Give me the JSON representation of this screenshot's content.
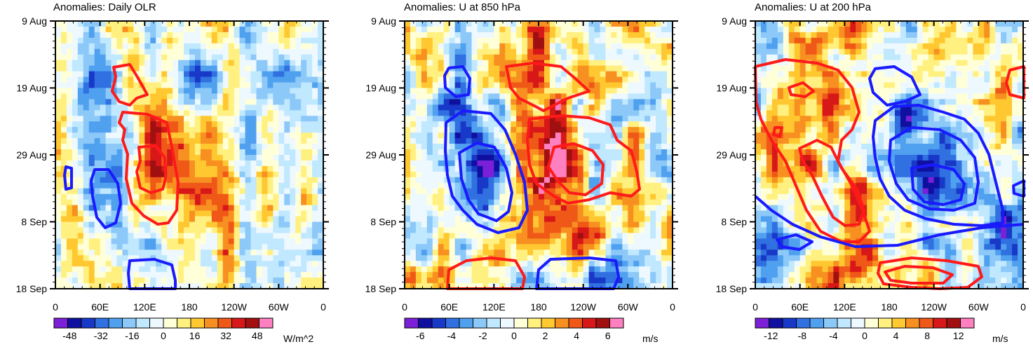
{
  "chart_data": [
    {
      "type": "heatmap",
      "title": "Anomalies: Daily OLR",
      "units": "W/m^2",
      "x_ticks": [
        "0",
        "60E",
        "120E",
        "180",
        "120W",
        "60W",
        "0"
      ],
      "y_ticks": [
        "9 Aug",
        "19 Aug",
        "29 Aug",
        "8 Sep",
        "18 Sep"
      ],
      "colorbar_ticks": [
        "-48",
        "-32",
        "-16",
        "0",
        "16",
        "32",
        "48"
      ],
      "colorbar_range": [
        -56,
        56
      ],
      "contour_colors": {
        "positive": "#ff1a1a",
        "negative": "#1a1aff"
      },
      "legend": "bottom"
    },
    {
      "type": "heatmap",
      "title": "Anomalies: U at 850 hPa",
      "units": "m/s",
      "x_ticks": [
        "0",
        "60E",
        "120E",
        "180",
        "120W",
        "60W",
        "0"
      ],
      "y_ticks": [
        "9 Aug",
        "19 Aug",
        "29 Aug",
        "8 Sep",
        "18 Sep"
      ],
      "colorbar_ticks": [
        "-6",
        "-4",
        "-2",
        "0",
        "2",
        "4",
        "6"
      ],
      "colorbar_range": [
        -7,
        7
      ],
      "contour_colors": {
        "positive": "#ff1a1a",
        "negative": "#1a1aff"
      },
      "legend": "bottom"
    },
    {
      "type": "heatmap",
      "title": "Anomalies: U at 200 hPa",
      "units": "m/s",
      "x_ticks": [
        "0",
        "60E",
        "120E",
        "180",
        "120W",
        "60W",
        "0"
      ],
      "y_ticks": [
        "9 Aug",
        "19 Aug",
        "29 Aug",
        "8 Sep",
        "18 Sep"
      ],
      "colorbar_ticks": [
        "-12",
        "-8",
        "-4",
        "0",
        "4",
        "8",
        "12"
      ],
      "colorbar_range": [
        -14,
        14
      ],
      "contour_colors": {
        "positive": "#ff1a1a",
        "negative": "#1a1aff"
      },
      "legend": "bottom"
    }
  ]
}
